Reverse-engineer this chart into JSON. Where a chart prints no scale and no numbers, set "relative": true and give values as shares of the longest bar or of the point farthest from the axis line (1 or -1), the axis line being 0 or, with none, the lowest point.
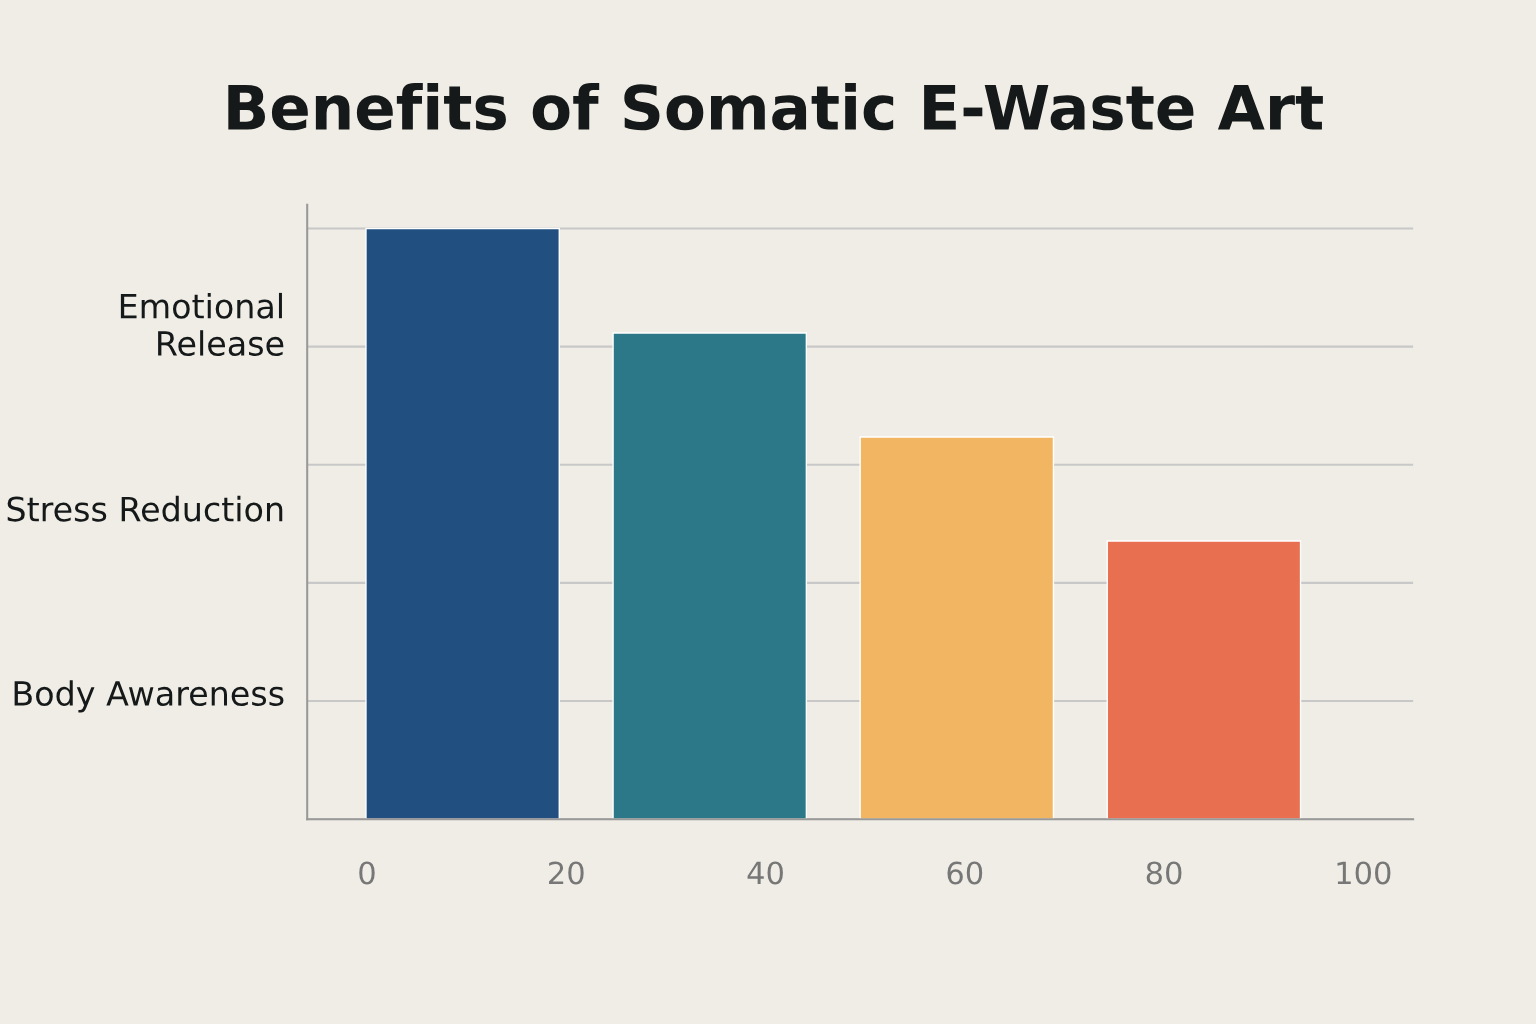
{
  "chart_data": {
    "type": "bar",
    "title": "Benefits of Somatic E-Waste Art",
    "x": [
      9.6,
      34.4,
      59.2,
      84
    ],
    "relative": true,
    "colors": [
      "#214f80",
      "#2c7889",
      "#f2b561",
      "#e87050"
    ],
    "values": [
      1,
      0.823,
      0.647,
      0.471
    ],
    "xlim": [
      -6,
      105
    ],
    "xticks": [
      0,
      20,
      40,
      60,
      80,
      100
    ],
    "annotations": [
      "Emotional Release",
      "Stress Reduction",
      "Body Awareness"
    ],
    "grid": "y"
  }
}
